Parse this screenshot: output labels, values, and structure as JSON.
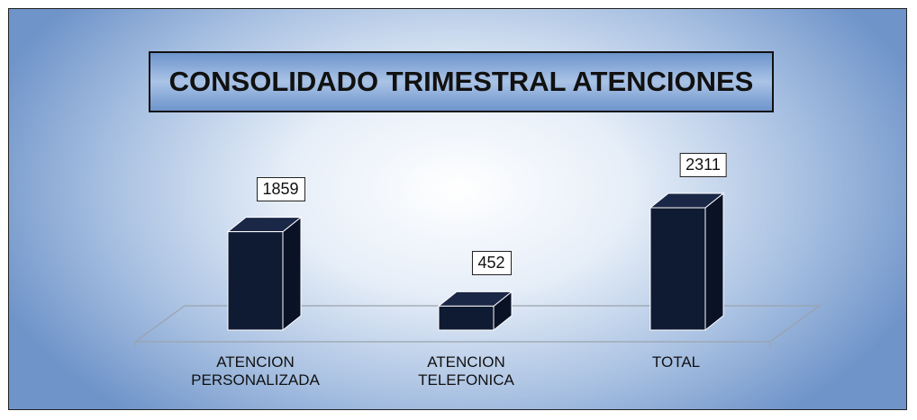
{
  "chart_data": {
    "type": "bar3d",
    "title": "CONSOLIDADO TRIMESTRAL ATENCIONES",
    "categories": [
      "ATENCION PERSONALIZADA",
      "ATENCION TELEFONICA",
      "TOTAL"
    ],
    "values": [
      1859,
      452,
      2311
    ],
    "color": "#0f1a33"
  }
}
